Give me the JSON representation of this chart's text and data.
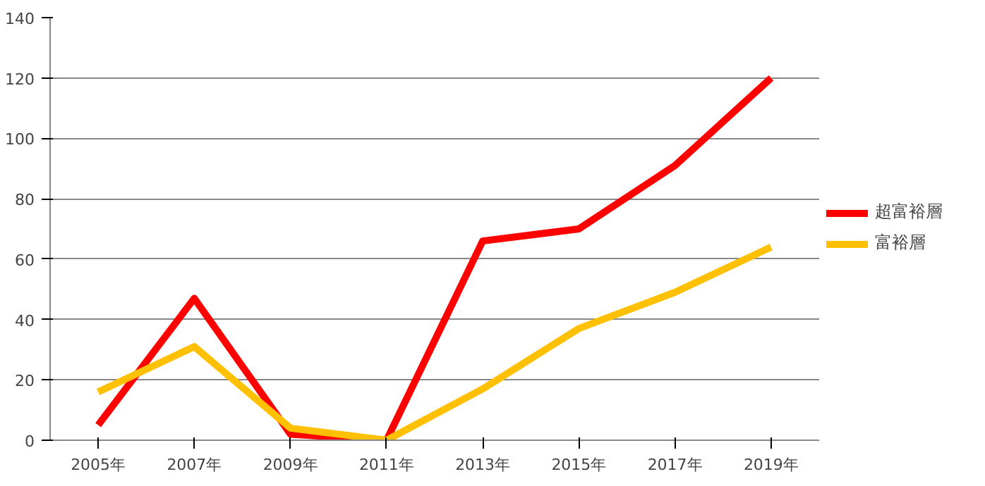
{
  "chart_data": {
    "type": "line",
    "categories": [
      "2005年",
      "2007年",
      "2009年",
      "2011年",
      "2013年",
      "2015年",
      "2017年",
      "2019年"
    ],
    "series": [
      {
        "name": "超富裕層",
        "color": "#ff0000",
        "values": [
          5,
          47,
          2,
          0,
          66,
          70,
          91,
          120
        ]
      },
      {
        "name": "富裕層",
        "color": "#ffc000",
        "values": [
          16,
          31,
          4,
          0,
          17,
          37,
          49,
          64
        ]
      }
    ],
    "ylim": [
      0,
      140
    ],
    "yticks": [
      0,
      20,
      40,
      60,
      80,
      100,
      120,
      140
    ],
    "grid": "y",
    "legend": "right",
    "marker": "none",
    "line_style": "solid"
  }
}
